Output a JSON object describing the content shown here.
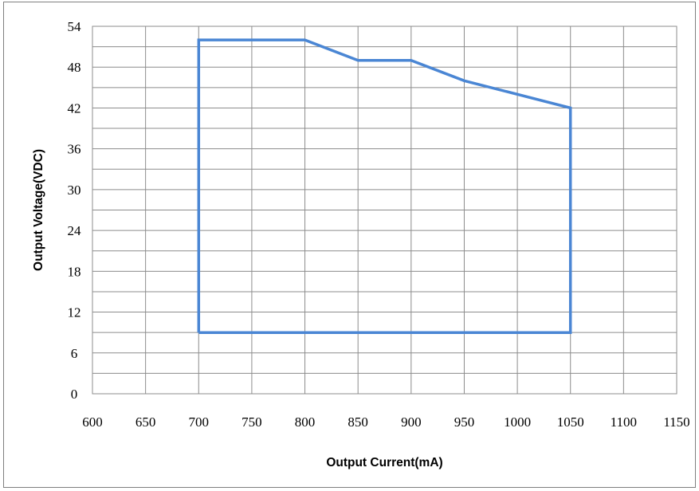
{
  "chart_data": {
    "type": "line",
    "title": "",
    "xlabel": "Output Current(mA)",
    "ylabel": "Output Voltage(VDC)",
    "xlim": [
      600,
      1150
    ],
    "ylim": [
      0,
      54
    ],
    "x_ticks": [
      "600",
      "650",
      "700",
      "750",
      "800",
      "850",
      "900",
      "950",
      "1000",
      "1050",
      "1100",
      "1150"
    ],
    "y_ticks": [
      "0",
      "6",
      "12",
      "18",
      "24",
      "30",
      "36",
      "42",
      "48",
      "54"
    ],
    "grid": true,
    "legend": "none",
    "series": [
      {
        "color": "#4a86d4",
        "x": [
          700,
          700,
          800,
          850,
          900,
          950,
          1050,
          1050,
          700
        ],
        "y": [
          9,
          52,
          52,
          49,
          49,
          46,
          42,
          9,
          9
        ]
      }
    ]
  }
}
